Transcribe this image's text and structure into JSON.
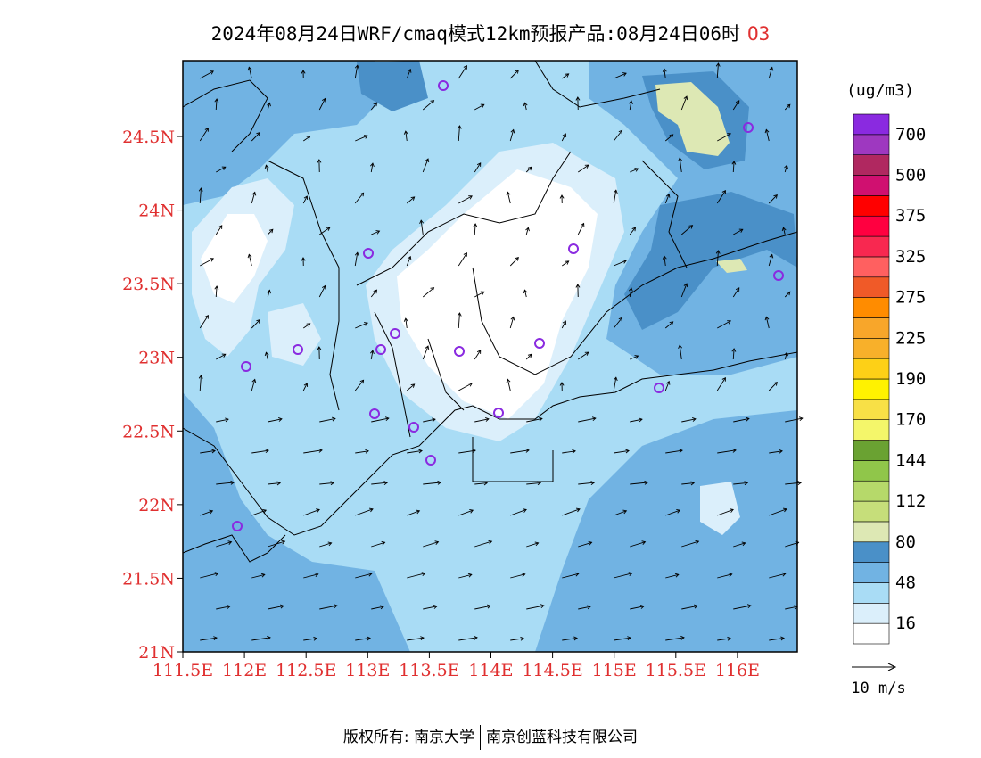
{
  "title": {
    "text": "2024年08月24日WRF/cmaq模式12km预报产品:08月24日06时",
    "species": "O3"
  },
  "map": {
    "lon_labels": [
      "111.5E",
      "112E",
      "112.5E",
      "113E",
      "113.5E",
      "114E",
      "114.5E",
      "115E",
      "115.5E",
      "116E"
    ],
    "lat_labels": [
      "24.5N",
      "24N",
      "23.5N",
      "23N",
      "22.5N",
      "22N",
      "21.5N",
      "21N"
    ],
    "label_color": "#e03030"
  },
  "legend": {
    "unit": "(ug/m3)",
    "bins": [
      {
        "color": "#ffffff"
      },
      {
        "color": "#dbeffb"
      },
      {
        "color": "#a9dcf5"
      },
      {
        "color": "#71b3e3"
      },
      {
        "color": "#4a90c8"
      },
      {
        "color": "#dde8b4"
      },
      {
        "color": "#c6de7a"
      },
      {
        "color": "#b6d96a"
      },
      {
        "color": "#90c64a"
      },
      {
        "color": "#6aa232"
      },
      {
        "color": "#f4f66a"
      },
      {
        "color": "#f8e046"
      },
      {
        "color": "#fff200"
      },
      {
        "color": "#fdd017"
      },
      {
        "color": "#f8b02a"
      },
      {
        "color": "#f8a62a"
      },
      {
        "color": "#ff8c00"
      },
      {
        "color": "#f05a28"
      },
      {
        "color": "#ff6060"
      },
      {
        "color": "#f82850"
      },
      {
        "color": "#ff0040"
      },
      {
        "color": "#ff0000"
      },
      {
        "color": "#d01070"
      },
      {
        "color": "#b02860"
      },
      {
        "color": "#9e38c0"
      },
      {
        "color": "#8a2ae0"
      }
    ],
    "labels": [
      "16",
      "48",
      "80",
      "112",
      "144",
      "170",
      "190",
      "225",
      "275",
      "325",
      "375",
      "500",
      "700"
    ],
    "wind_ref_label": "10 m/s"
  },
  "footer": {
    "left": "版权所有: 南京大学",
    "right": "南京创蓝科技有限公司"
  }
}
